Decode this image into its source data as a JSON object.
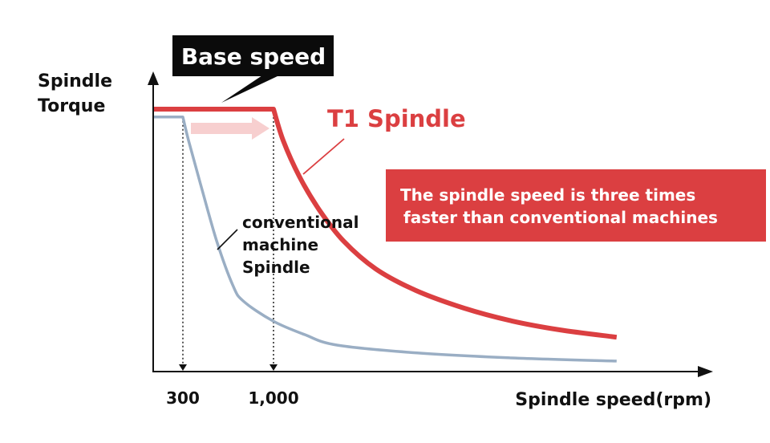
{
  "chart_data": {
    "type": "line",
    "title": "",
    "xlabel": "Spindle speed(rpm)",
    "ylabel_lines": [
      "Spindle",
      "Torque"
    ],
    "xlim": [
      70,
      4400
    ],
    "ylim": [
      0,
      100
    ],
    "grid": false,
    "x_ticks": [
      {
        "value": 300,
        "label": "300"
      },
      {
        "value": 1000,
        "label": "1,000"
      }
    ],
    "series": [
      {
        "name": "T1 Spindle",
        "label": "T1 Spindle",
        "color": "#db3f41",
        "points": [
          [
            70,
            100
          ],
          [
            1000,
            100
          ],
          [
            1075,
            88
          ],
          [
            1200,
            74.3
          ],
          [
            1355,
            61.5
          ],
          [
            1540,
            49.8
          ],
          [
            1790,
            39.1
          ],
          [
            2100,
            30.9
          ],
          [
            2470,
            24.2
          ],
          [
            2840,
            19.3
          ],
          [
            3210,
            15.9
          ],
          [
            3650,
            13.1
          ]
        ]
      },
      {
        "name": "conventional machine Spindle",
        "label_lines": [
          "conventional",
          "machine",
          "Spindle"
        ],
        "color": "#9aaec4",
        "points": [
          [
            70,
            97
          ],
          [
            300,
            97
          ],
          [
            344,
            88
          ],
          [
            437,
            71.3
          ],
          [
            561,
            49.8
          ],
          [
            685,
            33
          ],
          [
            766,
            26.9
          ],
          [
            995,
            19.3
          ],
          [
            1240,
            14.1
          ],
          [
            1490,
            10.1
          ],
          [
            2110,
            7.1
          ],
          [
            2840,
            5.2
          ],
          [
            3650,
            4
          ]
        ]
      }
    ],
    "annotations": {
      "base_speed_label": "Base speed",
      "callout_lines": [
        "The spindle speed is three times",
        "faster than conventional machines"
      ],
      "arrow": {
        "from": 300,
        "to": 1000
      }
    },
    "colors": {
      "axis": "#111111",
      "t1": "#db3f41",
      "conventional": "#9aaec4",
      "arrow": "#f7cfcf",
      "callout_bg": "#db3f41",
      "badge_bg": "#0b0b0b"
    }
  }
}
